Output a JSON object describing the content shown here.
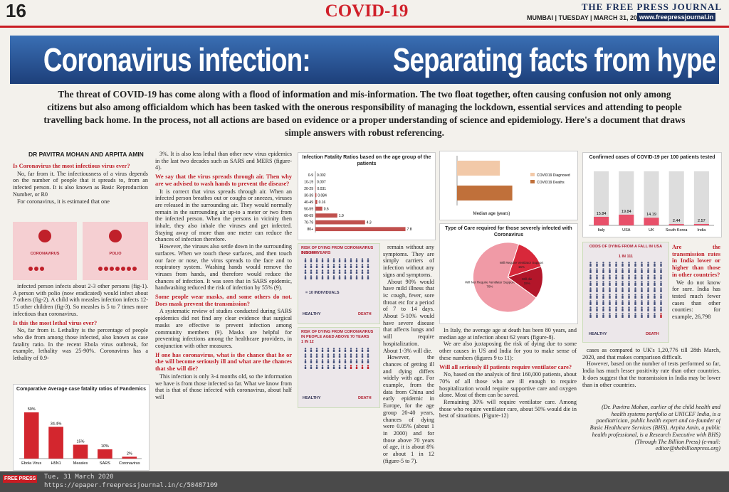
{
  "header": {
    "page_number": "16",
    "section": "COVID-19",
    "masthead": "THE FREE PRESS JOURNAL",
    "dateline": "MUMBAI | TUESDAY | MARCH 31, 2020",
    "url": "www.freepressjournal.in"
  },
  "headline": {
    "part1": "Coronavirus infection:",
    "part2": "Separating facts from hype"
  },
  "intro": "The threat of COVID-19 has come along with a flood of information and mis-information. The two float together, often causing confusion not only among citizens but also among officialdom which has been tasked with the onerous responsibility of managing the lockdown, essential services and attending to people travelling back home. In the process, not all actions are based on evidence or a proper understanding of science and epidemiology. Here's a document that draws simple answers with robust referencing.",
  "byline": "DR PAVITRA MOHAN AND ARPITA AMIN",
  "text_regions": [
    [
      {
        "heading": "Is Coronavirus the most infectious virus ever?"
      },
      {
        "text": "No, far from it. The infectiousness of a virus depends on the number of people that it spreads to, from an infected person. It is also known as Basic Reproduction Number, or R0"
      },
      {
        "text": "For coronavirus, it is estimated that one"
      }
    ],
    [
      {
        "text": "infected person infects about 2-3 other persons (fig-1). A person with polio (now eradicated) would infect about 7 others (fig-2). A child with measles infection infects 12-15 other children (fig-3). So measles is 5 to 7 times more infectious than coronavirus."
      },
      {
        "heading": "Is this the most lethal virus ever?"
      },
      {
        "text": "No, far from it. Lethality is the percentage of people who die from among those infected, also known as case fatality ratio. In the recent Ebola virus outbreak, for example, lethality was 25-90%. Coronavirus has a lethality of 0.9-"
      }
    ],
    [
      {
        "text": "3%. It is also less lethal than other new virus epidemics in the last two decades such as SARS and MERS (figure-4)."
      },
      {
        "heading": "We say that the virus spreads through air. Then why are we advised to wash hands to prevent the disease?"
      },
      {
        "text": "It is correct that virus spreads through air. When an infected person breathes out or coughs or sneezes, viruses are released in the surrounding air. They would normally remain in the surrounding air up-to a meter or two from the infected person. When the persons in vicinity then inhale, they also inhale the viruses and get infected. Staying away of more than one meter can reduce the chances of infection therefore."
      },
      {
        "text": "However, the viruses also settle down in the surrounding surfaces. When we touch these surfaces, and then touch our face or nose, the virus spreads to the face and to respiratory system. Washing hands would remove the viruses from hands, and therefore would reduce the chances of infection. It was seen that in SARS epidemic, handwashing reduced the risk of infection by 55% (9)."
      },
      {
        "heading": "Some people wear masks, and some others do not. Does mask prevent the transmission?"
      },
      {
        "text": "A systematic review of studies conducted during SARS epidemics did not find any clear evidence that surgical masks are effective to prevent infection among community members (9). Masks are helpful for preventing infections among the healthcare providers, in conjunction with other measures."
      },
      {
        "heading": "If one has coronavirus, what is the chance that he or she will become seriously ill and what are the chances that she will die?"
      },
      {
        "text": "This infection is only 3-4 months old, so the information we have is from those infected so far. What we know from that is that of those infected with coronavirus, about half will"
      }
    ],
    [
      {
        "text": "remain without any symptoms. They are simply carriers of infection without any signs and symptoms."
      },
      {
        "text": "About 90% would have mild illness that is: cough, fever, sore throat etc for a period of 7 to 14 days. About 5-10% would have severe disease that affects lungs and will require hospitalization. About 1-3% will die."
      },
      {
        "text": "However, the chances of getting ill and dying differs widely with age. For example, from the data from China and early epidemic in Europe, for the age group 20-40 years, chances of dying were 0.05% (about 1 in 2000) and for those above 70 years of age, it is about 8% or about 1 in 12 (figure-5 to 7)."
      }
    ],
    [
      {
        "text": "In Italy, the average age at death has been 80 years, and median age at infection about 62 years (figure-8)."
      },
      {
        "text": "We are also juxtaposing the risk of dying due to some other causes in US and India for you to make sense of these numbers (figures 9 to 11):"
      },
      {
        "heading": "Will all seriously ill patients require ventilator care?"
      },
      {
        "text": "No, based on the analysis of first 160,000 patients, about 70% of all those who are ill enough to require hospitalization would require supportive care and oxygen alone. Most of them can be saved."
      },
      {
        "text": "Remaining 30% will require ventilator care. Among those who require ventilator care, about 50% would die in best of situations. (Figure-12)"
      }
    ],
    [
      {
        "heading": "Are the transmission rates in India lower or higher than those in other countries?"
      },
      {
        "text": "We do not know for sure. India has tested much fewer cases than other counties: for example, 26,798"
      }
    ],
    [
      {
        "text": "cases as compared to UK's 1,20,776 till 28th March, 2020, and that makes comparison difficult."
      },
      {
        "text": "However, based on the number of tests performed so far, India has much lesser positivity rate than other countries. It does suggest that the transmission in India may be lower than in other countries."
      }
    ],
    [
      {
        "text": "(Dr. Pavitra Mohan, earlier of the child health and health systems portfolio at UNICEF India, is a paediatrician, public health expert and co-founder of Basic Healthcare Services (BHS). Arpita Amin, a public health professional, is a Research Executive with BHS) (Through The Billion Press) (e-mail: editor@thebillionpress.org)"
      }
    ]
  ],
  "infographics": [
    {
      "labels": [
        "CORONAVIRUS",
        "POLIO"
      ]
    },
    {
      "title": "RISK OF DYING FROM CORONAVIRUS IN 20-40 YEARS",
      "odds": "1 IN 2000",
      "legend": "= 10 INDIVIDUALS",
      "healthy": "HEALTHY",
      "death": "DEATH"
    },
    {
      "title": "RISK OF DYING FROM CORONAVIRUS IN PEOPLE AGED ABOVE 70 YEARS",
      "odds": "1 IN 12",
      "healthy": "HEALTHY",
      "death": "DEATH"
    },
    {
      "title": "ODDS OF DYING FROM A FALL IN USA",
      "odds": "1 IN 111",
      "healthy": "HEALTHY",
      "death": "DEATH"
    }
  ],
  "chart_data": [
    {
      "type": "bar",
      "title": "Comparative Average case fatality ratios of Pandemics",
      "categories": [
        "Ebola Virus",
        "H5N1",
        "Measles",
        "SARS",
        "Coronavirus"
      ],
      "values": [
        50,
        34.4,
        15,
        10,
        2
      ],
      "value_labels": [
        "50%",
        "34.4%",
        "15%",
        "10%",
        "2%"
      ],
      "color": "#d3262e",
      "ylim": [
        0,
        60
      ]
    },
    {
      "type": "hbar",
      "title": "Infection Fatality Ratios based on the age group of the patients",
      "categories": [
        "0-9",
        "10-19",
        "20-29",
        "30-39",
        "40-49",
        "50-59",
        "60-69",
        "70-79",
        "80+"
      ],
      "values": [
        0.002,
        0.007,
        0.031,
        0.084,
        0.16,
        0.6,
        1.9,
        4.3,
        7.8
      ],
      "color": "#c0504d",
      "xlim": [
        0,
        9
      ]
    },
    {
      "type": "hbar",
      "x_label": "Median age (years)",
      "series": [
        {
          "name": "COVID19 Diagnosed",
          "color": "#f2c9a8",
          "values": [
            62
          ]
        },
        {
          "name": "COVID19 Deaths",
          "color": "#c0703a",
          "values": [
            80
          ]
        }
      ],
      "xlim": [
        0,
        100
      ]
    },
    {
      "type": "pie",
      "title": "Type of Care required for those severely infected with Coronavirus",
      "categories": [
        "Will Not Require Ventilator Support",
        "Will Require Ventilator Support",
        "Will die"
      ],
      "values": [
        70,
        15,
        15
      ],
      "value_labels": [
        "70%",
        "15%",
        "15%"
      ],
      "colors": [
        "#f09aa6",
        "#d8283a",
        "#b3162a"
      ]
    },
    {
      "type": "bar",
      "title": "Confirmed cases of COVID-19 per 100 patients tested",
      "categories": [
        "Italy",
        "USA",
        "UK",
        "South Korea",
        "India"
      ],
      "values": [
        15.84,
        19.84,
        14.19,
        2.44,
        2.57
      ],
      "color": "#e8506a",
      "ylim": [
        0,
        100
      ]
    }
  ],
  "footer": {
    "logo": "FREE PRESS",
    "date": "Tue, 31 March 2020",
    "link": "https://epaper.freepressjournal.in/c/50487109"
  }
}
